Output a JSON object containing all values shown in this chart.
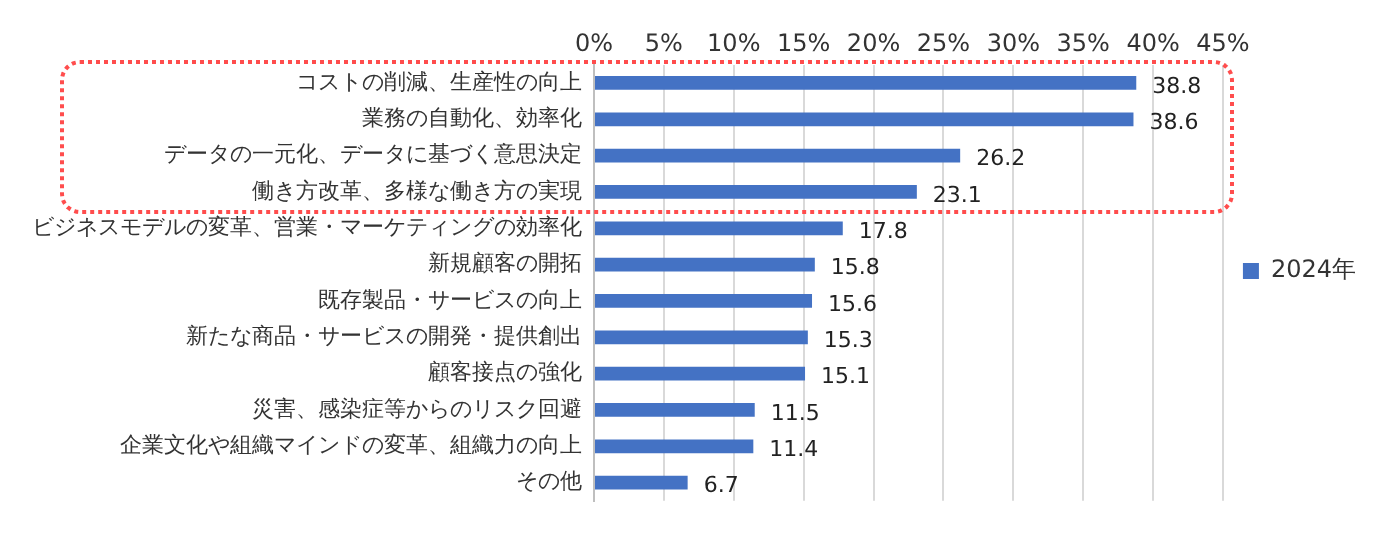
{
  "chart_data": {
    "type": "bar",
    "orientation": "horizontal",
    "categories": [
      "コストの削減、生産性の向上",
      "業務の自動化、効率化",
      "データの一元化、データに基づく意思決定",
      "働き方改革、多様な働き方の実現",
      "ビジネスモデルの変革、営業・マーケティングの効率化",
      "新規顧客の開拓",
      "既存製品・サービスの向上",
      "新たな商品・サービスの開発・提供創出",
      "顧客接点の強化",
      "災害、感染症等からのリスク回避",
      "企業文化や組織マインドの変革、組織力の向上",
      "その他"
    ],
    "series": [
      {
        "name": "2024年",
        "color": "#4472c4",
        "values": [
          38.8,
          38.6,
          26.2,
          23.1,
          17.8,
          15.8,
          15.6,
          15.3,
          15.1,
          11.5,
          11.4,
          6.7
        ]
      }
    ],
    "xlim": [
      0,
      45
    ],
    "xticks": [
      {
        "value": 0,
        "label": "0%"
      },
      {
        "value": 5,
        "label": "5%"
      },
      {
        "value": 10,
        "label": "10%"
      },
      {
        "value": 15,
        "label": "15%"
      },
      {
        "value": 20,
        "label": "20%"
      },
      {
        "value": 25,
        "label": "25%"
      },
      {
        "value": 30,
        "label": "30%"
      },
      {
        "value": 35,
        "label": "35%"
      },
      {
        "value": 40,
        "label": "40%"
      },
      {
        "value": 45,
        "label": "45%"
      }
    ],
    "grid": "x",
    "legend": "right",
    "data_labels": true
  }
}
